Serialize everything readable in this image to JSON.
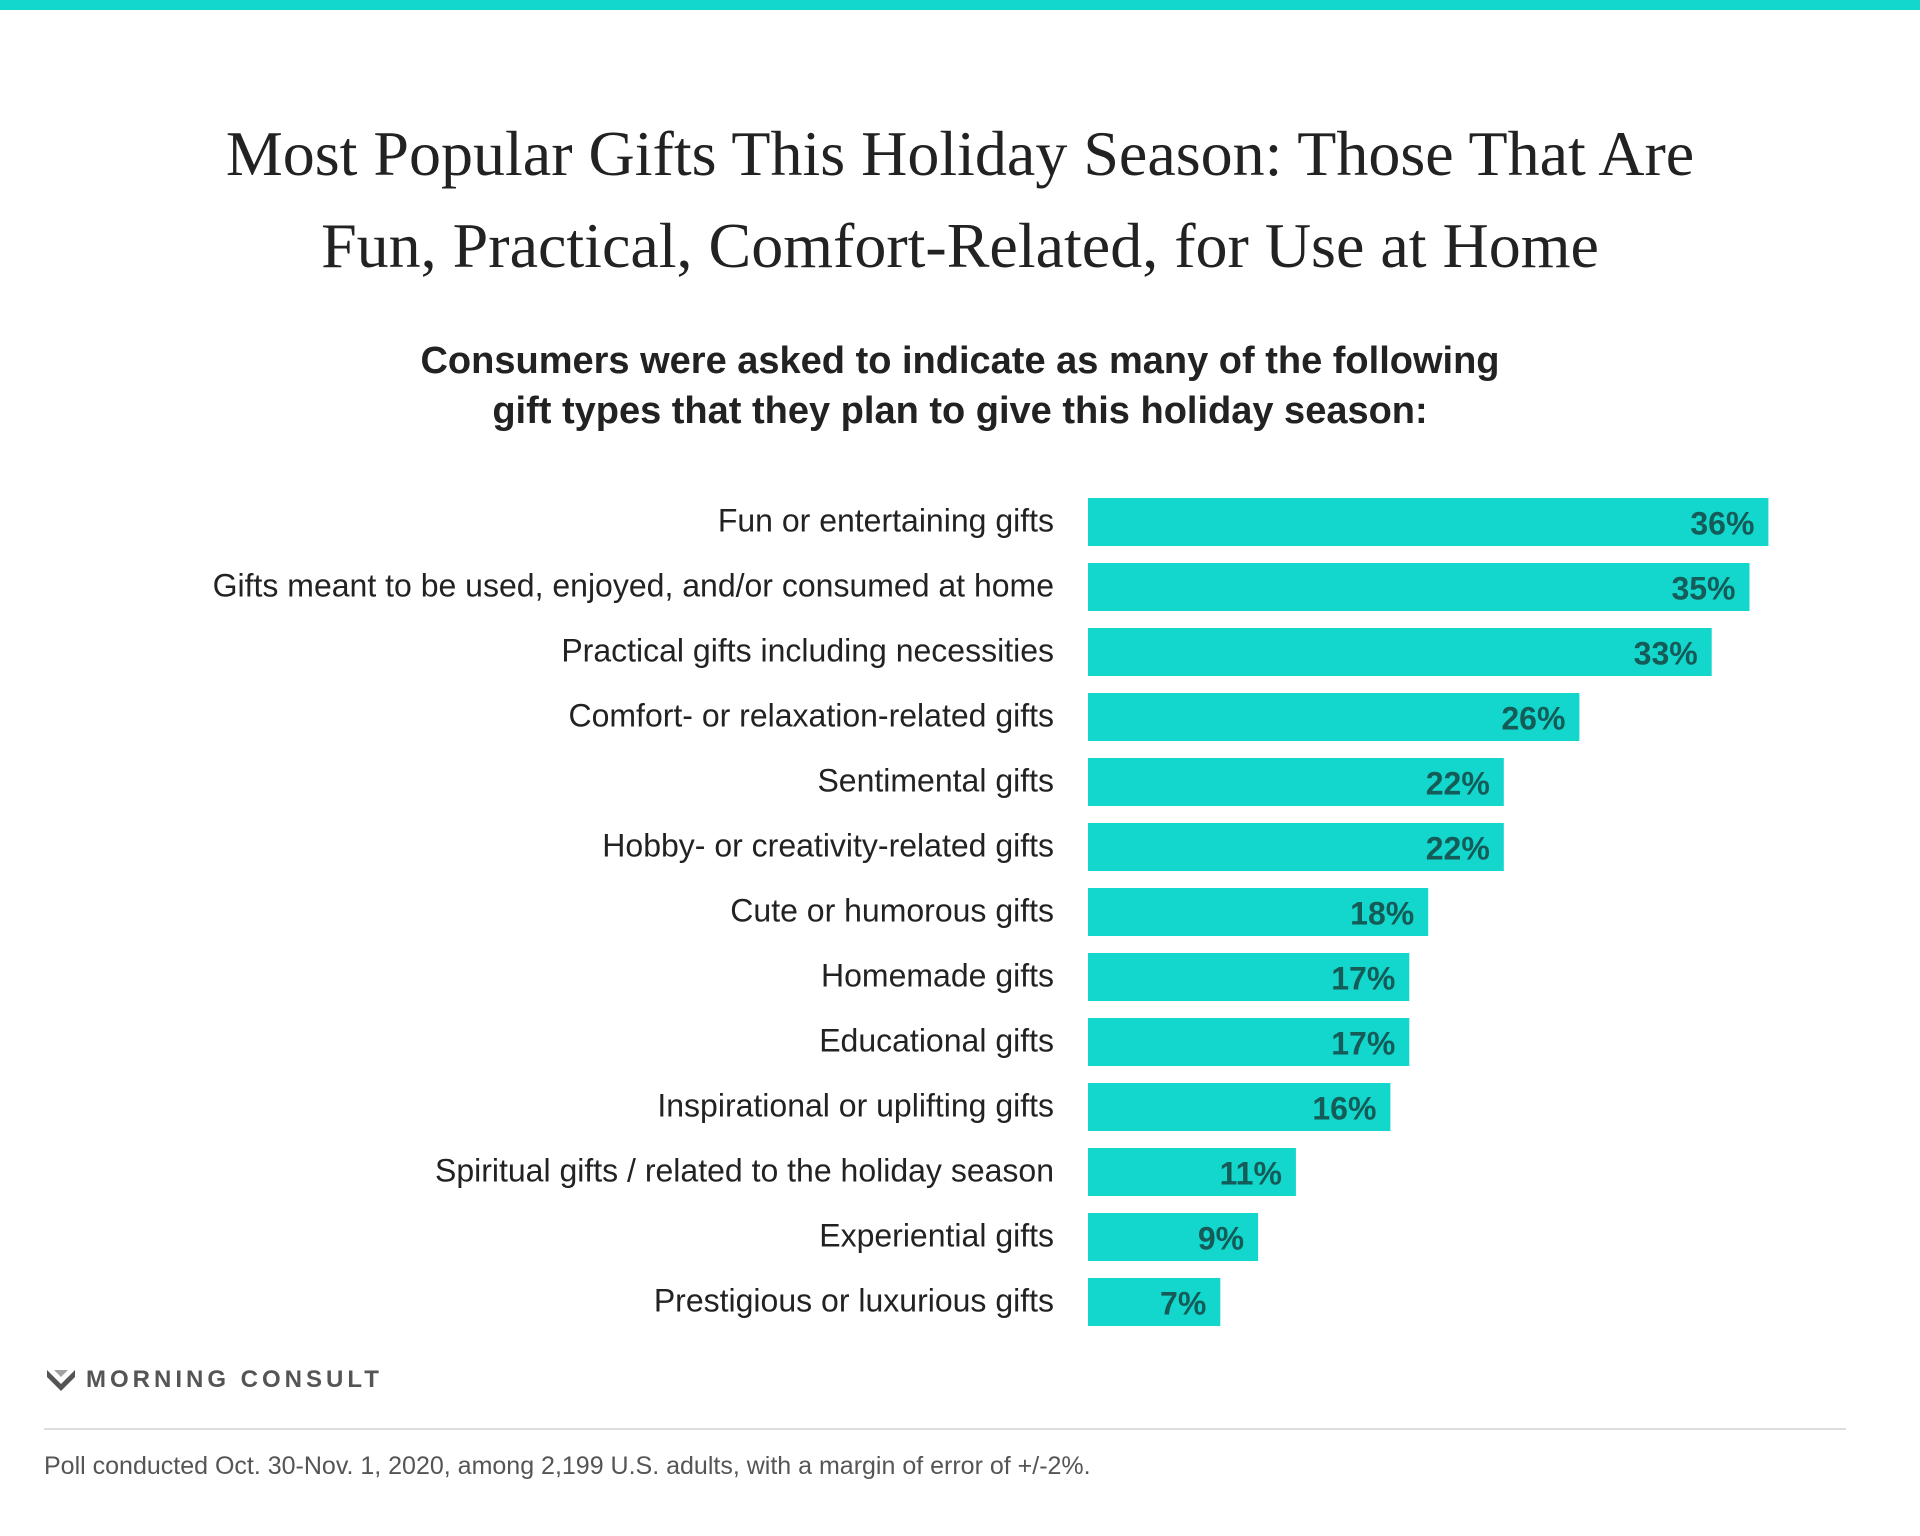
{
  "colors": {
    "accent": "#13d6cc",
    "bar_label": "#155b58",
    "text": "#222222",
    "muted": "#555555"
  },
  "header": {
    "title_line1": "Most Popular Gifts This Holiday Season: Those That Are",
    "title_line2": "Fun, Practical, Comfort-Related, for Use at Home",
    "subtitle_line1": "Consumers were asked to indicate as many of the following",
    "subtitle_line2": "gift types that they plan to give this holiday season:"
  },
  "chart_data": {
    "type": "bar",
    "orientation": "horizontal",
    "categories": [
      "Fun or entertaining gifts",
      "Gifts meant to be used, enjoyed, and/or consumed at home",
      "Practical gifts including necessities",
      "Comfort- or relaxation-related gifts",
      "Sentimental gifts",
      "Hobby- or creativity-related gifts",
      "Cute or humorous gifts",
      "Homemade gifts",
      "Educational gifts",
      "Inspirational or uplifting gifts",
      "Spiritual gifts / related to the holiday season",
      "Experiential gifts",
      "Prestigious or luxurious gifts"
    ],
    "values": [
      36,
      35,
      33,
      26,
      22,
      22,
      18,
      17,
      17,
      16,
      11,
      9,
      7
    ],
    "value_suffix": "%",
    "xlim": [
      0,
      40
    ],
    "grid": false,
    "legend": "none"
  },
  "footer": {
    "brand": "MORNING CONSULT",
    "logo_icon": "morning-consult-m-icon",
    "note": "Poll conducted Oct. 30-Nov. 1, 2020, among 2,199 U.S. adults, with a margin of error of +/-2%."
  }
}
